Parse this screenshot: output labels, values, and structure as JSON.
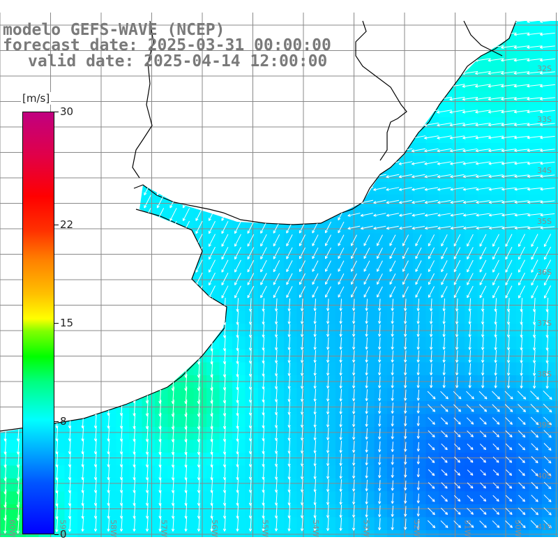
{
  "title": {
    "line1": "modelo GEFS-WAVE (NCEP)",
    "line2": "forecast date: 2025-03-31 00:00:00",
    "line3": "valid date: 2025-04-14 12:00:00"
  },
  "colorbar": {
    "unit": "[m/s]",
    "ticks": [
      {
        "label": "30",
        "value": 30
      },
      {
        "label": "22",
        "value": 22
      },
      {
        "label": "15",
        "value": 15
      },
      {
        "label": "8",
        "value": 8
      },
      {
        "label": "0",
        "value": 0
      }
    ]
  },
  "lat_labels": [
    "32S",
    "33S",
    "34S",
    "35S",
    "36S",
    "37S",
    "38S",
    "39S",
    "40S",
    "41S"
  ],
  "lon_labels": [
    "60W",
    "59W",
    "58W",
    "57W",
    "56W",
    "55W",
    "54W",
    "53W",
    "52W",
    "51W",
    "50W"
  ],
  "colors": {
    "land": "#ffffff",
    "grid": "#888888",
    "coast": "#000000",
    "vector": "#ffffff",
    "label": "#7a7a7a"
  }
}
